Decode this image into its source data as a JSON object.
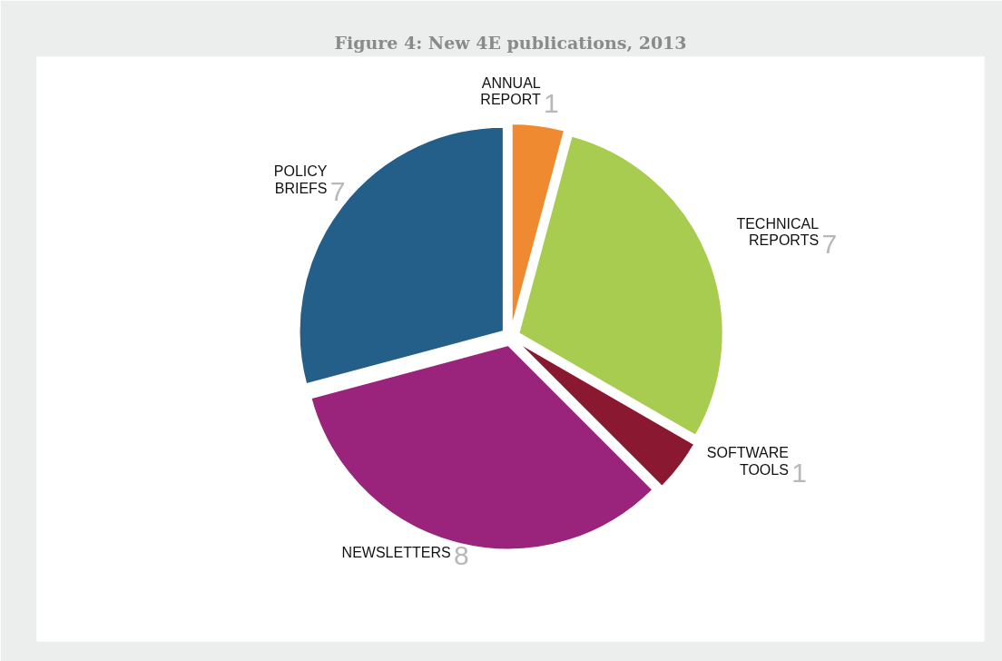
{
  "chart_data": {
    "type": "pie",
    "title": "Figure 4: New 4E publications, 2013",
    "categories": [
      "ANNUAL REPORT",
      "TECHNICAL REPORTS",
      "SOFTWARE TOOLS",
      "NEWSLETTERS",
      "POLICY BRIEFS"
    ],
    "values": [
      1,
      7,
      1,
      8,
      7
    ],
    "colors": [
      "#f08a30",
      "#a8cc50",
      "#8a1830",
      "#9a237c",
      "#245f8a"
    ],
    "data_labels": true
  }
}
